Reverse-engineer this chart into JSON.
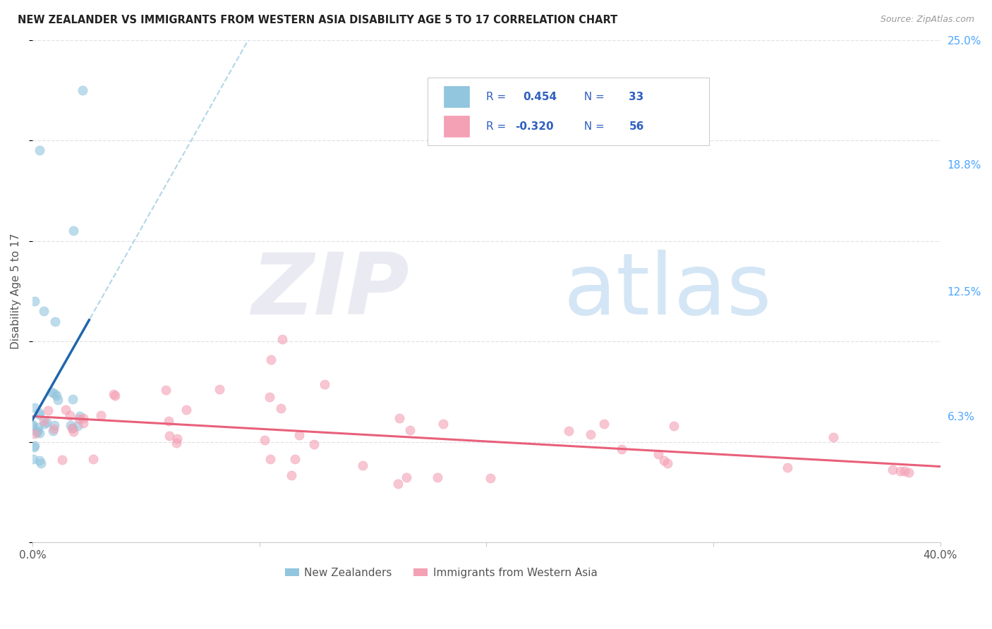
{
  "title": "NEW ZEALANDER VS IMMIGRANTS FROM WESTERN ASIA DISABILITY AGE 5 TO 17 CORRELATION CHART",
  "source": "Source: ZipAtlas.com",
  "ylabel": "Disability Age 5 to 17",
  "xlim": [
    0.0,
    0.4
  ],
  "ylim": [
    0.0,
    0.25
  ],
  "blue_color": "#92c5de",
  "pink_color": "#f4a0b5",
  "blue_line_color": "#2166ac",
  "pink_line_color": "#e8607a",
  "blue_R": 0.454,
  "blue_N": 33,
  "pink_R": -0.32,
  "pink_N": 56,
  "legend_text_color": "#3060c0",
  "right_tick_color": "#4da6ff",
  "background_color": "#ffffff",
  "grid_color": "#e0e0e8"
}
